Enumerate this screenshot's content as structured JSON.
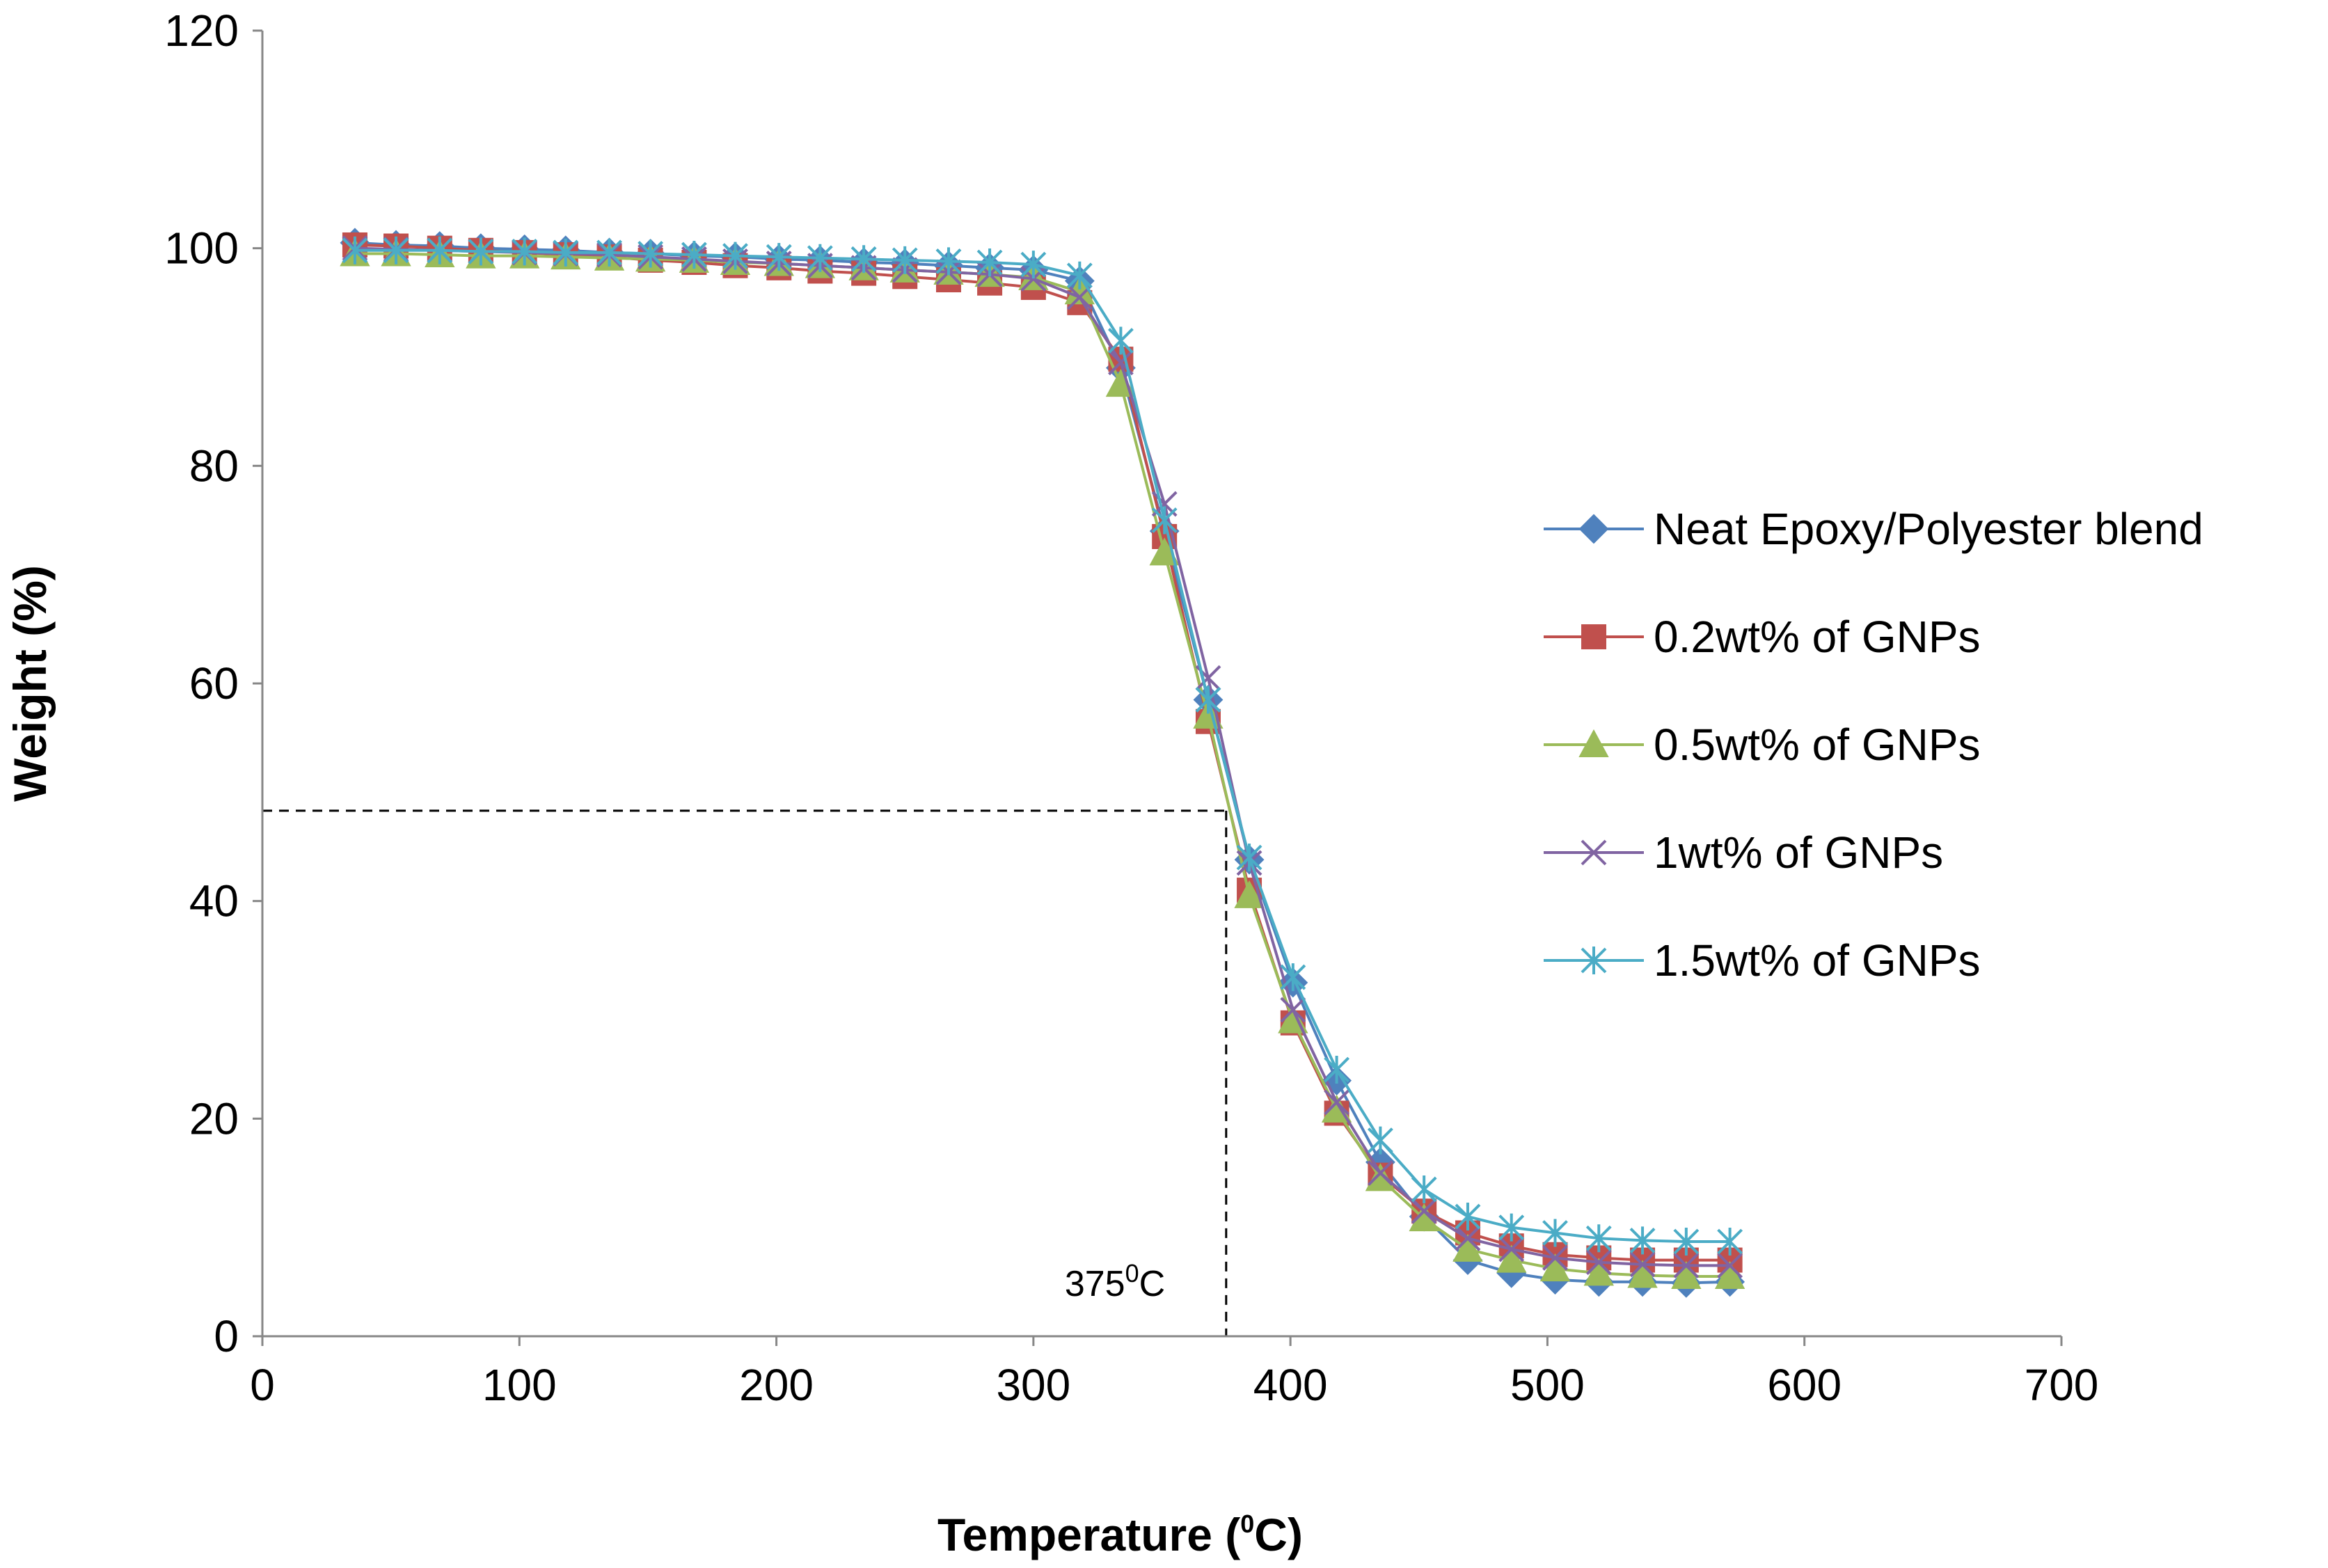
{
  "chart_data": {
    "type": "line",
    "title": "",
    "xlabel": "Temperature (",
    "xlabel_sup": "0",
    "xlabel_tail": "C)",
    "ylabel": "Weight (%)",
    "xlim": [
      0,
      700
    ],
    "ylim": [
      0,
      120
    ],
    "xticks": [
      0,
      100,
      200,
      300,
      400,
      500,
      600,
      700
    ],
    "yticks": [
      0,
      20,
      40,
      60,
      80,
      100,
      120
    ],
    "grid": false,
    "legend_position": "right",
    "annotation": {
      "x": 375,
      "y": 48.3,
      "text": "375",
      "sup": "0",
      "tail": "C"
    },
    "x": [
      36,
      52,
      69,
      85,
      102,
      118,
      135,
      151,
      168,
      184,
      201,
      217,
      234,
      250,
      267,
      283,
      300,
      318,
      334,
      351,
      368,
      384,
      401,
      418,
      435,
      452,
      469,
      486,
      503,
      520,
      537,
      554,
      571
    ],
    "series": [
      {
        "name": "Neat Epoxy/Polyester blend",
        "color": "#4f81bd",
        "marker": "diamond",
        "values": [
          100.5,
          100.3,
          100.2,
          100.0,
          99.9,
          99.8,
          99.6,
          99.5,
          99.3,
          99.2,
          99.0,
          98.9,
          98.7,
          98.6,
          98.4,
          98.2,
          98.0,
          97.0,
          89.0,
          74.0,
          58.5,
          43.8,
          32.5,
          23.5,
          16.0,
          11.0,
          7.0,
          5.8,
          5.2,
          5.0,
          5.0,
          4.9,
          5.0
        ]
      },
      {
        "name": "0.2wt% of GNPs",
        "color": "#c0504d",
        "marker": "square",
        "values": [
          100.3,
          100.2,
          100.0,
          99.8,
          99.6,
          99.4,
          99.2,
          98.9,
          98.7,
          98.4,
          98.2,
          97.9,
          97.7,
          97.4,
          97.1,
          96.8,
          96.4,
          95.0,
          89.8,
          73.5,
          56.5,
          41.0,
          28.8,
          20.5,
          14.8,
          11.5,
          9.5,
          8.3,
          7.5,
          7.2,
          7.0,
          7.0,
          7.0
        ]
      },
      {
        "name": "0.5wt% of GNPs",
        "color": "#9bbb59",
        "marker": "triangle",
        "values": [
          99.5,
          99.5,
          99.4,
          99.3,
          99.3,
          99.2,
          99.1,
          99.0,
          98.9,
          98.7,
          98.6,
          98.4,
          98.2,
          98.0,
          97.8,
          97.6,
          97.3,
          96.0,
          87.5,
          72.0,
          57.0,
          40.5,
          29.0,
          20.8,
          14.5,
          10.8,
          8.0,
          7.0,
          6.2,
          5.8,
          5.6,
          5.5,
          5.5
        ]
      },
      {
        "name": "1wt% of GNPs",
        "color": "#8064a2",
        "marker": "x",
        "values": [
          100.0,
          99.9,
          99.8,
          99.7,
          99.6,
          99.5,
          99.4,
          99.2,
          99.0,
          98.8,
          98.6,
          98.4,
          98.2,
          98.0,
          97.8,
          97.6,
          97.2,
          95.5,
          89.5,
          76.5,
          60.5,
          43.5,
          30.0,
          21.5,
          15.0,
          11.5,
          9.0,
          8.0,
          7.2,
          6.8,
          6.6,
          6.5,
          6.5
        ]
      },
      {
        "name": "1.5wt% of GNPs",
        "color": "#4bacc6",
        "marker": "asterisk",
        "values": [
          99.8,
          99.8,
          99.8,
          99.7,
          99.7,
          99.6,
          99.6,
          99.5,
          99.4,
          99.3,
          99.2,
          99.1,
          99.0,
          98.9,
          98.8,
          98.7,
          98.5,
          97.5,
          91.5,
          75.0,
          58.5,
          44.0,
          33.0,
          24.5,
          18.0,
          13.5,
          11.0,
          10.0,
          9.5,
          9.0,
          8.8,
          8.7,
          8.7
        ]
      }
    ]
  }
}
